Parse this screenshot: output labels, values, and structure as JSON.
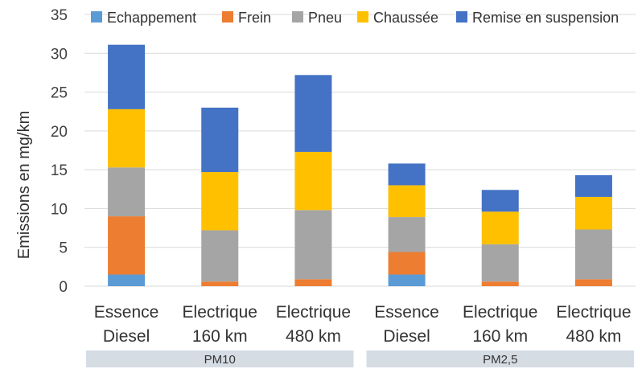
{
  "chart_data": {
    "type": "bar",
    "stacked": true,
    "ylabel": "Emissions en mg/km",
    "ylim": [
      0,
      35
    ],
    "yticks": [
      0,
      5,
      10,
      15,
      20,
      25,
      30,
      35
    ],
    "grid": true,
    "legend_position": "top",
    "categories": [
      [
        "Essence",
        "Diesel"
      ],
      [
        "Electrique",
        "160 km"
      ],
      [
        "Electrique",
        "480 km"
      ],
      [
        "Essence",
        "Diesel"
      ],
      [
        "Electrique",
        "160 km"
      ],
      [
        "Electrique",
        "480 km"
      ]
    ],
    "groups": [
      {
        "label": "PM10",
        "span": [
          0,
          2
        ]
      },
      {
        "label": "PM2,5",
        "span": [
          3,
          5
        ]
      }
    ],
    "series": [
      {
        "name": "Echappement",
        "color": "#5b9bd5",
        "values": [
          1.5,
          0,
          0,
          1.5,
          0,
          0
        ]
      },
      {
        "name": "Frein",
        "color": "#ed7d31",
        "values": [
          7.5,
          0.6,
          0.9,
          2.9,
          0.6,
          0.9
        ]
      },
      {
        "name": "Pneu",
        "color": "#a5a5a5",
        "values": [
          6.3,
          6.6,
          8.9,
          4.5,
          4.8,
          6.4
        ]
      },
      {
        "name": "Chaussée",
        "color": "#ffc000",
        "values": [
          7.5,
          7.5,
          7.5,
          4.1,
          4.2,
          4.2
        ]
      },
      {
        "name": "Remise en suspension",
        "color": "#4472c4",
        "values": [
          8.3,
          8.3,
          9.9,
          2.8,
          2.8,
          2.8
        ]
      }
    ]
  }
}
